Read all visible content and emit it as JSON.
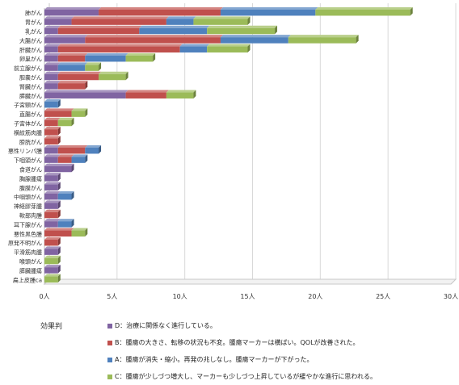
{
  "chart_data": {
    "type": "bar",
    "orientation": "horizontal",
    "stacked": true,
    "style": "3d",
    "categories": [
      "肺がん",
      "胃がん",
      "乳がん",
      "大腸がん",
      "肝臓がん",
      "卵巣がん",
      "前立腺がん",
      "胆嚢がん",
      "腎臓がん",
      "膵臓がん",
      "子宮頸がん",
      "直腸がん",
      "子宮体がん",
      "横紋筋肉腫",
      "膀胱がん",
      "悪性リンパ腫",
      "下咽頭がん",
      "食道がん",
      "胸腺腫瘍",
      "腹膜がん",
      "中咽頭がん",
      "神経膠芽腫",
      "軟部肉腫",
      "耳下腺がん",
      "悪性黒色腫",
      "原発不明がん",
      "平滑筋肉腫",
      "喉頭がん",
      "膵臓腫瘍",
      "扁上皮腫ca"
    ],
    "series": [
      {
        "name": "D：治療に関係なく進行している。",
        "color": "#8064a2",
        "values": [
          4,
          2,
          1,
          3,
          1,
          1,
          1,
          1,
          1,
          6,
          0,
          0,
          0,
          0,
          0,
          1,
          1,
          2,
          1,
          1,
          1,
          1,
          0,
          1,
          0,
          0,
          1,
          0,
          1,
          0
        ]
      },
      {
        "name": "B：腫瘍の大きさ、転移の状況も不変。腫瘍マーカーは横ばい。QOLが改善された。",
        "color": "#c0504d",
        "values": [
          9,
          7,
          6,
          10,
          9,
          2,
          0,
          3,
          2,
          3,
          0,
          2,
          1,
          1,
          1,
          2,
          1,
          0,
          0,
          0,
          0,
          0,
          1,
          0,
          2,
          1,
          0,
          0,
          0,
          0
        ]
      },
      {
        "name": "A：腫瘍が消失・縮小。再発の兆しなし。腫瘍マーカーが下がった。",
        "color": "#4f81bd",
        "values": [
          7,
          2,
          5,
          5,
          2,
          3,
          2,
          0,
          0,
          0,
          1,
          0,
          0,
          0,
          0,
          1,
          1,
          0,
          0,
          0,
          1,
          0,
          0,
          1,
          0,
          0,
          0,
          0,
          0,
          0
        ]
      },
      {
        "name": "C：腫瘍が少しづつ増大し、マーカーも少しづつ上昇しているが緩やかな進行に思われる。",
        "color": "#9bbb59",
        "values": [
          7,
          4,
          5,
          5,
          3,
          2,
          1,
          2,
          0,
          2,
          0,
          1,
          1,
          0,
          0,
          0,
          0,
          0,
          0,
          0,
          0,
          0,
          0,
          0,
          1,
          0,
          0,
          1,
          0,
          1
        ]
      }
    ],
    "xlim": [
      0,
      30
    ],
    "xticks": [
      "0人",
      "5人",
      "10人",
      "15人",
      "20人",
      "25人",
      "30人"
    ],
    "grid": true,
    "legend_title": "効果判",
    "legend_position": "bottom"
  }
}
